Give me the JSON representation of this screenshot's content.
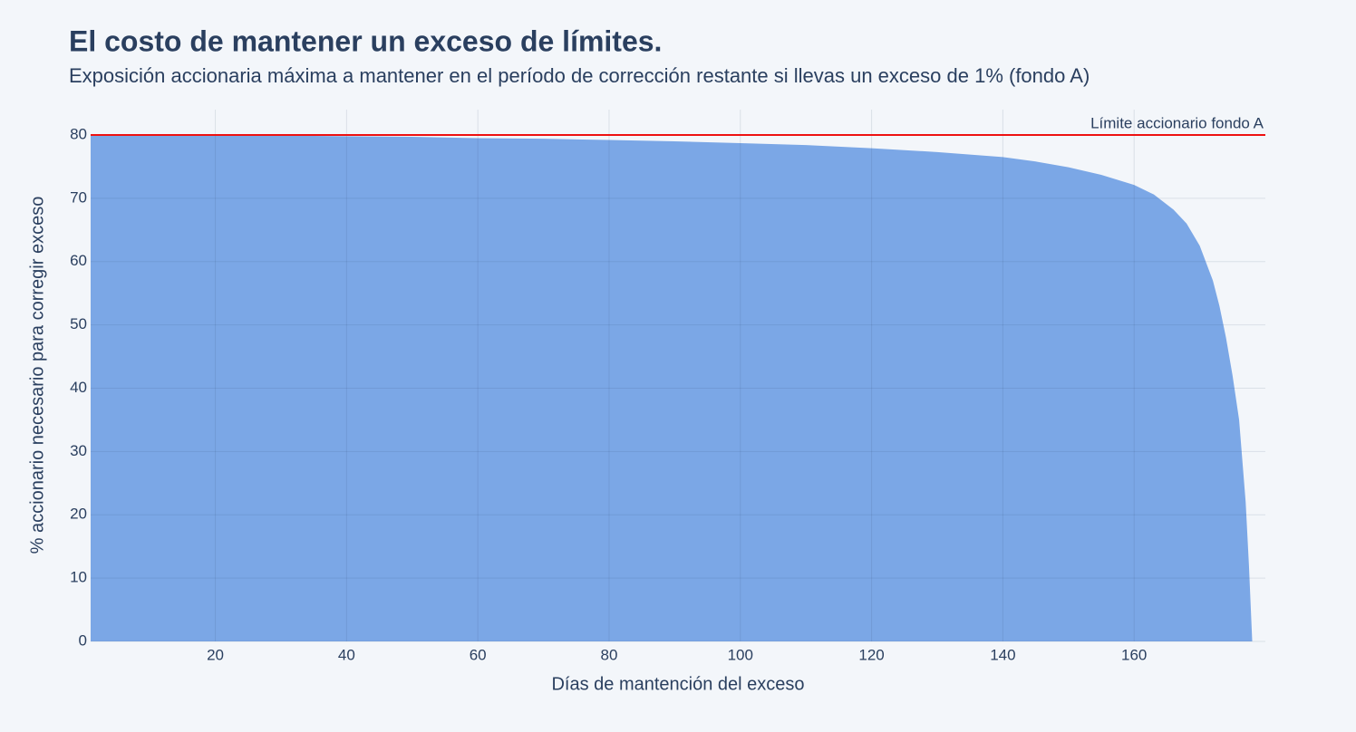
{
  "chart_data": {
    "type": "area",
    "title": "El costo de mantener un exceso de límites.",
    "subtitle": "Exposición accionaria máxima a mantener en el período de corrección restante si llevas un exceso de 1% (fondo A)",
    "x_label": "Días de mantención del exceso",
    "y_label": "% accionario necesario para corregir exceso",
    "x": [
      1,
      10,
      20,
      30,
      40,
      50,
      60,
      70,
      80,
      90,
      100,
      110,
      120,
      130,
      140,
      145,
      150,
      155,
      160,
      163,
      166,
      168,
      170,
      172,
      173,
      174,
      175,
      176,
      177,
      177.5,
      178
    ],
    "series": [
      {
        "color": "#78a5e6",
        "values": [
          80,
          80,
          79.9,
          79.9,
          79.8,
          79.7,
          79.5,
          79.4,
          79.2,
          79,
          78.7,
          78.4,
          77.9,
          77.3,
          76.5,
          75.8,
          74.9,
          73.7,
          72.1,
          70.6,
          68.2,
          66,
          62.5,
          57,
          53,
          48,
          42,
          35,
          22,
          12,
          0
        ]
      }
    ],
    "reference_line": {
      "value": 80,
      "label": "Límite accionario fondo A",
      "color": "#ee1111"
    },
    "xlim": [
      1,
      180
    ],
    "xticks": [
      20,
      40,
      60,
      80,
      100,
      120,
      140,
      160
    ],
    "ylim": [
      0,
      84
    ],
    "yticks": [
      0,
      10,
      20,
      30,
      40,
      50,
      60,
      70,
      80
    ],
    "grid": true
  }
}
